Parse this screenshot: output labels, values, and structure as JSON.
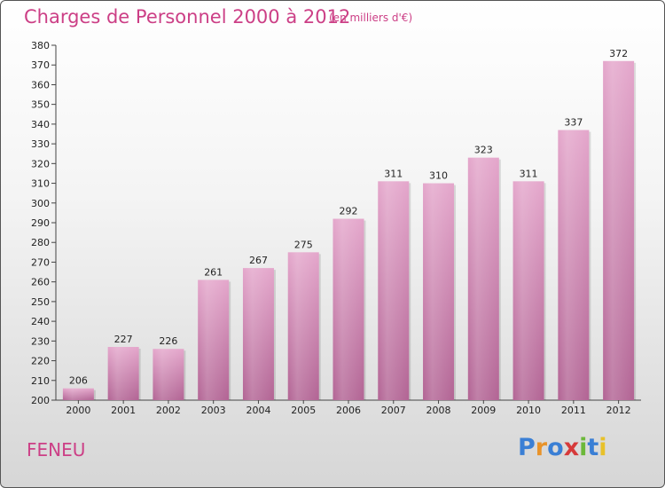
{
  "header": {
    "title": "Charges de Personnel 2000 à 2012",
    "subtitle": "(en milliers d'€)"
  },
  "footer": {
    "commune": "FENEU",
    "logo_letters": [
      "P",
      "r",
      "o",
      "x",
      "i",
      "t",
      "i"
    ],
    "logo_colors": [
      "#3a7fd5",
      "#e8932a",
      "#3a7fd5",
      "#d63a3a",
      "#6cb83a",
      "#3a7fd5",
      "#e8c12a"
    ]
  },
  "chart_data": {
    "type": "bar",
    "categories": [
      "2000",
      "2001",
      "2002",
      "2003",
      "2004",
      "2005",
      "2006",
      "2007",
      "2008",
      "2009",
      "2010",
      "2011",
      "2012"
    ],
    "values": [
      206,
      227,
      226,
      261,
      267,
      275,
      292,
      311,
      310,
      323,
      311,
      337,
      372
    ],
    "ylim": [
      200,
      380
    ],
    "ytick_step": 10,
    "grid": false,
    "bar_color": "#d98ab8",
    "bar_color_dark": "#b26494",
    "title": "Charges de Personnel 2000 à 2012",
    "xlabel": "",
    "ylabel": ""
  }
}
